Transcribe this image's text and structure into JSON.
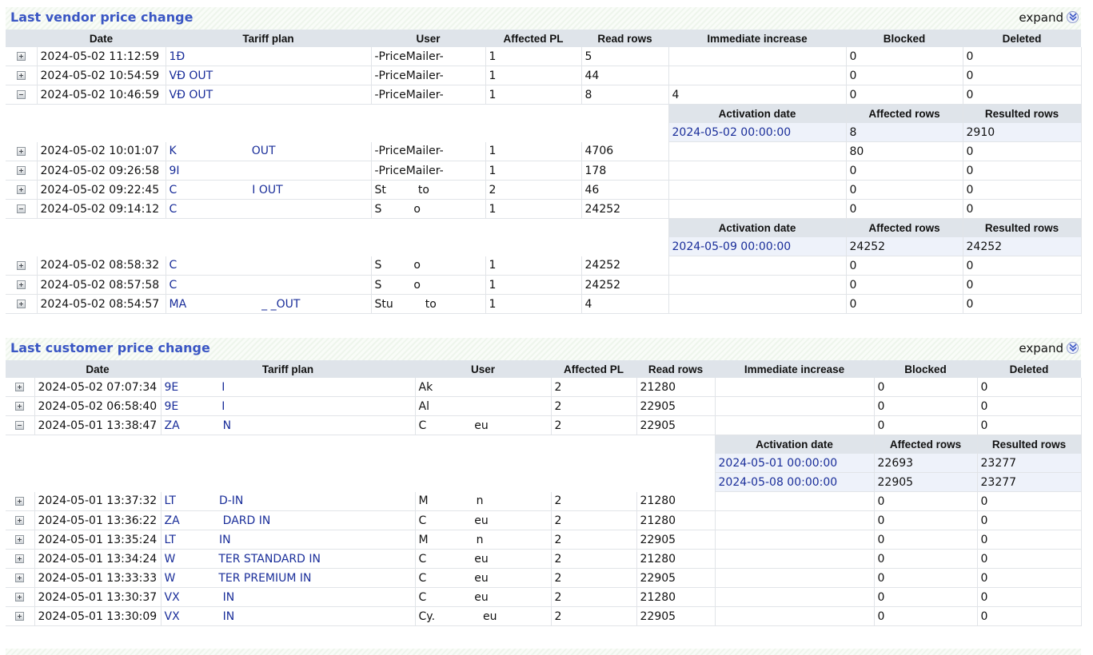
{
  "vendor": {
    "title": "Last vendor price change",
    "expand_label": "expand",
    "headers": [
      "Date",
      "Tariff plan",
      "User",
      "Affected PL",
      "Read rows",
      "Immediate increase",
      "Blocked",
      "Deleted"
    ],
    "detail_headers": [
      "Activation date",
      "Affected rows",
      "Resulted rows"
    ],
    "rows": [
      {
        "date": "2024-05-02 11:12:59",
        "plan": "1Đ",
        "user": "-PriceMailer-",
        "pl": "1",
        "read": "5",
        "inc": "",
        "blocked": "0",
        "deleted": "0",
        "expanded": false
      },
      {
        "date": "2024-05-02 10:54:59",
        "plan": "VĐ               OUT",
        "user": "-PriceMailer-",
        "pl": "1",
        "read": "44",
        "inc": "",
        "blocked": "0",
        "deleted": "0",
        "expanded": false
      },
      {
        "date": "2024-05-02 10:46:59",
        "plan": "VĐ               OUT",
        "user": "-PriceMailer-",
        "pl": "1",
        "read": "8",
        "inc": "4",
        "blocked": "0",
        "deleted": "0",
        "expanded": true,
        "details": [
          {
            "act": "2024-05-02 00:00:00",
            "aff": "8",
            "res": "2910"
          }
        ]
      },
      {
        "date": "2024-05-02 10:01:07",
        "plan": "K",
        "user": "-PriceMailer-",
        "pl": "1",
        "read": "4706",
        "inc": "",
        "blocked": "80",
        "deleted": "0",
        "expanded": false,
        "suffix": "OUT"
      },
      {
        "date": "2024-05-02 09:26:58",
        "plan": "9I",
        "user": "-PriceMailer-",
        "pl": "1",
        "read": "178",
        "inc": "",
        "blocked": "0",
        "deleted": "0",
        "expanded": false
      },
      {
        "date": "2024-05-02 09:22:45",
        "plan": "C",
        "user": "St",
        "pl": "2",
        "read": "46",
        "inc": "",
        "blocked": "0",
        "deleted": "0",
        "expanded": false,
        "suffix": "I OUT",
        "usuffix": "to"
      },
      {
        "date": "2024-05-02 09:14:12",
        "plan": "C",
        "user": "S",
        "pl": "1",
        "read": "24252",
        "inc": "",
        "blocked": "0",
        "deleted": "0",
        "expanded": true,
        "usuffix": "o",
        "details": [
          {
            "act": "2024-05-09 00:00:00",
            "aff": "24252",
            "res": "24252"
          }
        ]
      },
      {
        "date": "2024-05-02 08:58:32",
        "plan": "C",
        "user": "S",
        "pl": "1",
        "read": "24252",
        "inc": "",
        "blocked": "0",
        "deleted": "0",
        "expanded": false,
        "usuffix": "o"
      },
      {
        "date": "2024-05-02 08:57:58",
        "plan": "C",
        "user": "S",
        "pl": "1",
        "read": "24252",
        "inc": "",
        "blocked": "0",
        "deleted": "0",
        "expanded": false,
        "usuffix": "o"
      },
      {
        "date": "2024-05-02 08:54:57",
        "plan": "MA",
        "user": "Stu",
        "pl": "1",
        "read": "4",
        "inc": "",
        "blocked": "0",
        "deleted": "0",
        "expanded": false,
        "suffix": "_  _OUT",
        "usuffix": "to"
      }
    ]
  },
  "customer": {
    "title": "Last customer price change",
    "expand_label": "expand",
    "headers": [
      "Date",
      "Tariff plan",
      "User",
      "Affected PL",
      "Read rows",
      "Immediate increase",
      "Blocked",
      "Deleted"
    ],
    "detail_headers": [
      "Activation date",
      "Affected rows",
      "Resulted rows"
    ],
    "rows": [
      {
        "date": "2024-05-02 07:07:34",
        "plan": "9E",
        "suffix": "I",
        "user": "Ak",
        "pl": "2",
        "read": "21280",
        "inc": "",
        "blocked": "0",
        "deleted": "0",
        "expanded": false
      },
      {
        "date": "2024-05-02 06:58:40",
        "plan": "9E",
        "suffix": "I",
        "user": "Al",
        "pl": "2",
        "read": "22905",
        "inc": "",
        "blocked": "0",
        "deleted": "0",
        "expanded": false
      },
      {
        "date": "2024-05-01 13:38:47",
        "plan": "ZA",
        "suffix": "N",
        "user": "C",
        "usuffix": "eu",
        "pl": "2",
        "read": "22905",
        "inc": "",
        "blocked": "0",
        "deleted": "0",
        "expanded": true,
        "details": [
          {
            "act": "2024-05-01 00:00:00",
            "aff": "22693",
            "res": "23277"
          },
          {
            "act": "2024-05-08 00:00:00",
            "aff": "22905",
            "res": "23277"
          }
        ]
      },
      {
        "date": "2024-05-01 13:37:32",
        "plan": "LT",
        "suffix": "D-IN",
        "user": "M",
        "usuffix": "n",
        "pl": "2",
        "read": "21280",
        "inc": "",
        "blocked": "0",
        "deleted": "0",
        "expanded": false
      },
      {
        "date": "2024-05-01 13:36:22",
        "plan": "ZA",
        "suffix": "DARD IN",
        "user": "C",
        "usuffix": "eu",
        "pl": "2",
        "read": "21280",
        "inc": "",
        "blocked": "0",
        "deleted": "0",
        "expanded": false
      },
      {
        "date": "2024-05-01 13:35:24",
        "plan": "LT",
        "suffix": "IN",
        "user": "M",
        "usuffix": "n",
        "pl": "2",
        "read": "22905",
        "inc": "",
        "blocked": "0",
        "deleted": "0",
        "expanded": false
      },
      {
        "date": "2024-05-01 13:34:24",
        "plan": "W",
        "suffix": "TER STANDARD IN",
        "user": "C",
        "usuffix": "eu",
        "pl": "2",
        "read": "21280",
        "inc": "",
        "blocked": "0",
        "deleted": "0",
        "expanded": false
      },
      {
        "date": "2024-05-01 13:33:33",
        "plan": "W",
        "suffix": "TER PREMIUM IN",
        "user": "C",
        "usuffix": "eu",
        "pl": "2",
        "read": "22905",
        "inc": "",
        "blocked": "0",
        "deleted": "0",
        "expanded": false
      },
      {
        "date": "2024-05-01 13:30:37",
        "plan": "VX",
        "suffix": "IN",
        "user": "C",
        "usuffix": "eu",
        "pl": "2",
        "read": "21280",
        "inc": "",
        "blocked": "0",
        "deleted": "0",
        "expanded": false
      },
      {
        "date": "2024-05-01 13:30:09",
        "plan": "VX",
        "suffix": "IN",
        "user": "Cy.",
        "usuffix": "eu",
        "pl": "2",
        "read": "22905",
        "inc": "",
        "blocked": "0",
        "deleted": "0",
        "expanded": false
      }
    ]
  }
}
